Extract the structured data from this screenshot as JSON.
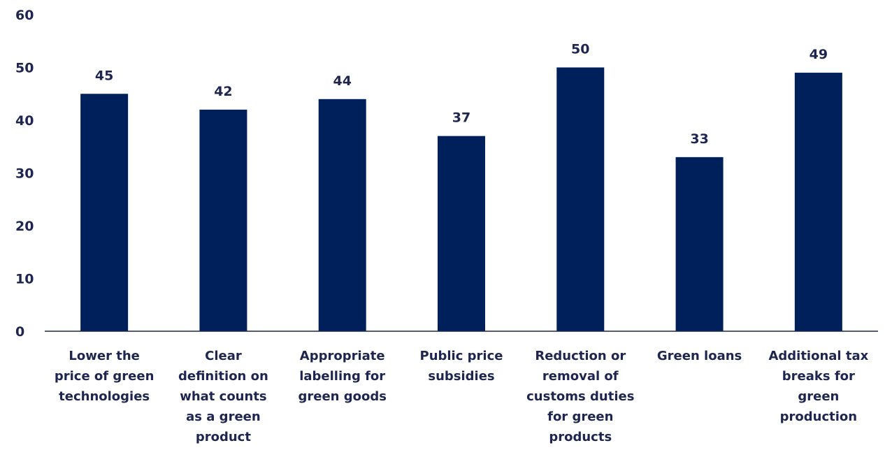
{
  "chart_data": {
    "type": "bar",
    "categories": [
      [
        "Lower the",
        "price of green",
        "technologies"
      ],
      [
        "Clear",
        "definition on",
        "what counts",
        "as a green",
        "product"
      ],
      [
        "Appropriate",
        "labelling for",
        "green goods"
      ],
      [
        "Public price",
        "subsidies"
      ],
      [
        "Reduction or",
        "removal of",
        "customs duties",
        "for green",
        "products"
      ],
      [
        "Green loans"
      ],
      [
        "Additional tax",
        "breaks for",
        "green",
        "production"
      ]
    ],
    "values": [
      45,
      42,
      44,
      37,
      50,
      33,
      49
    ],
    "data_labels": [
      "45",
      "42",
      "44",
      "37",
      "50",
      "33",
      "49"
    ],
    "ylim": [
      0,
      60
    ],
    "y_ticks": [
      "0",
      "10",
      "20",
      "30",
      "40",
      "50",
      "60"
    ],
    "grid": false,
    "colors": {
      "bar": "#00205b",
      "text": "#1d2550",
      "axis": "#1d2550"
    }
  }
}
